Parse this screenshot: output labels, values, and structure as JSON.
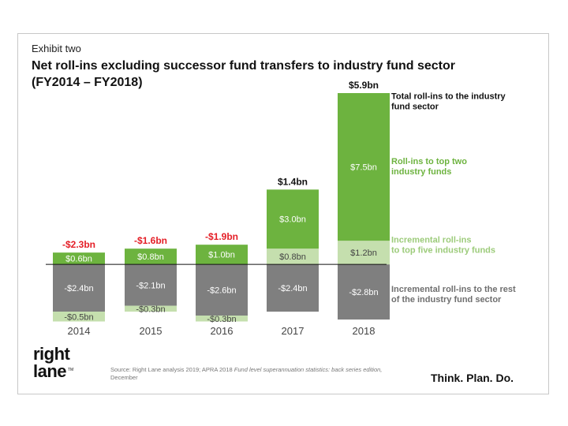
{
  "exhibit_label": "Exhibit two",
  "title_line1": "Net roll-ins excluding successor fund transfers to industry fund sector",
  "title_line2": "(FY2014 – FY2018)",
  "source": {
    "prefix": "Source: Right Lane analysis 2019; APRA 2018 ",
    "italic": "Fund level superannuation statistics: back series edition,",
    "suffix": " December"
  },
  "tagline": "Think. Plan. Do.",
  "logo": {
    "line1": "right",
    "line2": "lane",
    "mark": "TM"
  },
  "colors": {
    "top_two": "#6db33f",
    "top_five": "#c5dfae",
    "rest": "#7f7f7f",
    "total_negative": "#e41e26",
    "total_positive": "#111111",
    "legend_top_two": "#6db33f",
    "legend_top_five": "#9ccb7a",
    "legend_rest": "#6f6f6f"
  },
  "chart_data": {
    "type": "bar",
    "stacked": true,
    "categories": [
      "2014",
      "2015",
      "2016",
      "2017",
      "2018"
    ],
    "series": [
      {
        "key": "rest",
        "name": "Incremental roll-ins to the rest of the industry fund sector",
        "values": [
          -2.4,
          -2.1,
          -2.6,
          -2.4,
          -2.8
        ],
        "labels": [
          "-$2.4bn",
          "-$2.1bn",
          "-$2.6bn",
          "-$2.4bn",
          "-$2.8bn"
        ]
      },
      {
        "key": "top_five",
        "name": "Incremental roll-ins to top five industry funds",
        "values": [
          -0.5,
          -0.3,
          -0.3,
          0.8,
          1.2
        ],
        "labels": [
          "-$0.5bn",
          "-$0.3bn",
          "-$0.3bn",
          "$0.8bn",
          "$1.2bn"
        ]
      },
      {
        "key": "top_two",
        "name": "Roll-ins to top two industry funds",
        "values": [
          0.6,
          0.8,
          1.0,
          3.0,
          7.5
        ],
        "labels": [
          "$0.6bn",
          "$0.8bn",
          "$1.0bn",
          "$3.0bn",
          "$7.5bn"
        ]
      }
    ],
    "totals": {
      "name": "Total roll-ins to the industry fund sector",
      "values": [
        -2.3,
        -1.6,
        -1.9,
        1.4,
        5.9
      ],
      "labels": [
        "-$2.3bn",
        "-$1.6bn",
        "-$1.9bn",
        "$1.4bn",
        "$5.9bn"
      ]
    },
    "legend": [
      {
        "key": "totals",
        "line1": "Total roll-ins to the industry",
        "line2": "fund sector",
        "y_value": 8.4
      },
      {
        "key": "top_two",
        "line1": "Roll-ins to top two",
        "line2": "industry funds",
        "y_value": 5.1
      },
      {
        "key": "top_five",
        "line1": "Incremental roll-ins",
        "line2": "to top five industry funds",
        "y_value": 1.1
      },
      {
        "key": "rest",
        "line1": "Incremental roll-ins to the rest",
        "line2": "of the industry fund sector",
        "y_value": -1.4
      }
    ],
    "ylim": [
      -3.2,
      8.7
    ],
    "grid": false,
    "legend_position": "right",
    "xlabel": "",
    "ylabel": ""
  }
}
